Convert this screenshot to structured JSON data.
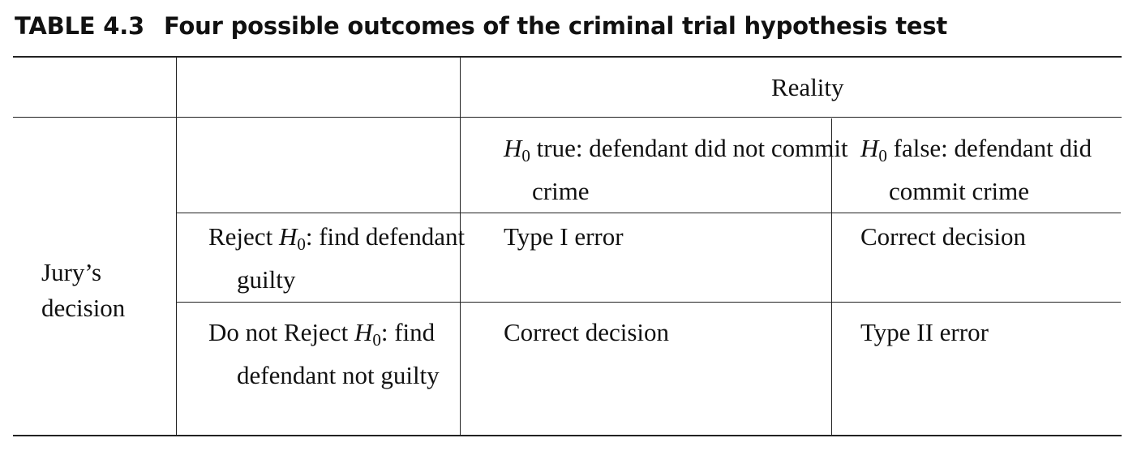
{
  "table": {
    "label": "TABLE 4.3",
    "title": "Four possible outcomes of the criminal trial hypothesis test",
    "header": {
      "reality": "Reality",
      "col_true": {
        "symbol": "H",
        "subscript": "0",
        "text": " true: defendant did not commit crime"
      },
      "col_false": {
        "symbol": "H",
        "subscript": "0",
        "text": " false: defendant did commit crime"
      }
    },
    "row_group": "Jury’s decision",
    "rows": [
      {
        "prefix": "Reject ",
        "symbol": "H",
        "subscript": "0",
        "suffix": ": find defendant guilty",
        "cells": [
          "Type I error",
          "Correct decision"
        ]
      },
      {
        "prefix": "Do not Reject ",
        "symbol": "H",
        "subscript": "0",
        "suffix": ": find defendant not guilty",
        "cells": [
          "Correct decision",
          "Type II error"
        ]
      }
    ]
  }
}
